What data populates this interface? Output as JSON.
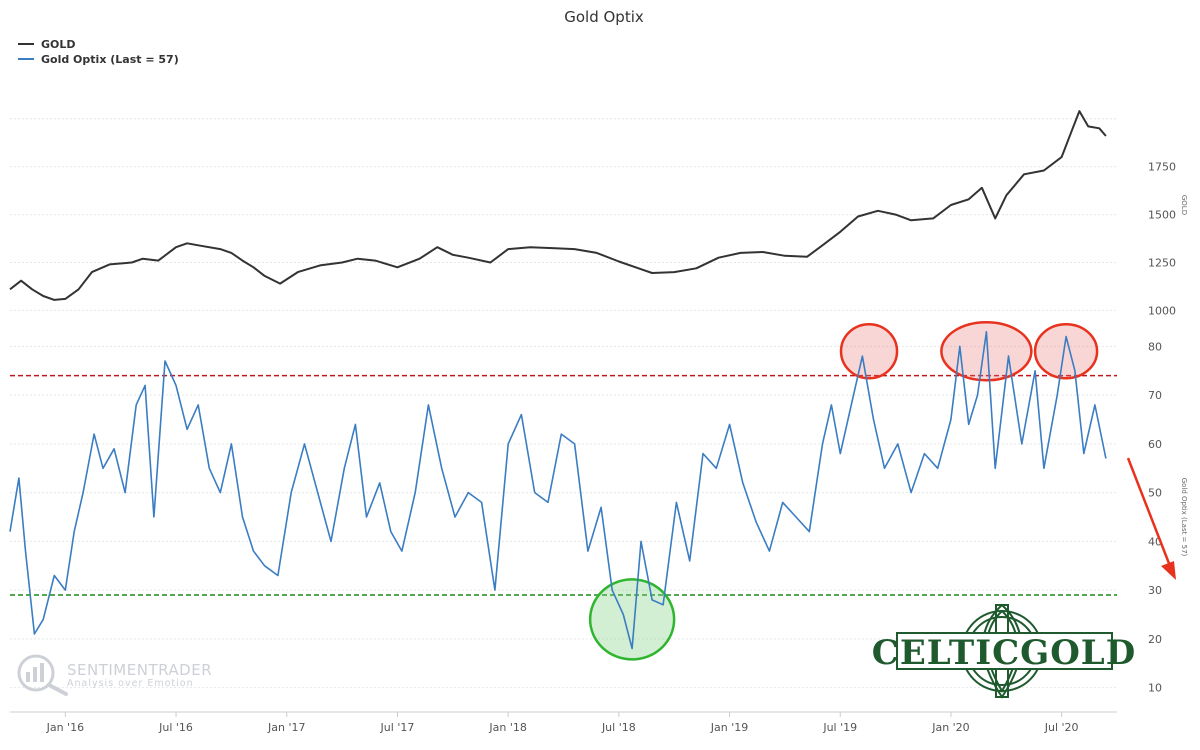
{
  "chart_data": {
    "type": "line",
    "title": "Gold Optix",
    "x_tick_labels": [
      "Jan '16",
      "Jul '16",
      "Jan '17",
      "Jul '17",
      "Jan '18",
      "Jul '18",
      "Jan '19",
      "Jul '19",
      "Jan '20",
      "Jul '20"
    ],
    "x_tick_positions": [
      2016.0,
      2016.5,
      2017.0,
      2017.5,
      2018.0,
      2018.5,
      2019.0,
      2019.5,
      2020.0,
      2020.5
    ],
    "xlim": [
      2015.75,
      2020.75
    ],
    "panels": [
      {
        "name": "gold",
        "axis_label": "GOLD",
        "ylim": [
          950,
          2150
        ],
        "ticks": [
          "1000",
          "1250",
          "1500",
          "1750"
        ],
        "tick_values": [
          1000,
          1250,
          1500,
          1750
        ]
      },
      {
        "name": "optix",
        "axis_label": "Gold Optix (Last = 57)",
        "ylim": [
          5,
          85
        ],
        "ticks": [
          "10",
          "20",
          "30",
          "40",
          "50",
          "60",
          "70",
          "80"
        ],
        "tick_values": [
          10,
          20,
          30,
          40,
          50,
          60,
          70,
          80
        ]
      }
    ],
    "series": [
      {
        "name": "GOLD",
        "panel": "gold",
        "color": "#333333",
        "points": [
          [
            2015.75,
            1110
          ],
          [
            2015.8,
            1155
          ],
          [
            2015.85,
            1110
          ],
          [
            2015.9,
            1075
          ],
          [
            2015.95,
            1055
          ],
          [
            2016.0,
            1060
          ],
          [
            2016.06,
            1110
          ],
          [
            2016.12,
            1200
          ],
          [
            2016.2,
            1240
          ],
          [
            2016.3,
            1250
          ],
          [
            2016.35,
            1270
          ],
          [
            2016.42,
            1260
          ],
          [
            2016.5,
            1330
          ],
          [
            2016.55,
            1350
          ],
          [
            2016.6,
            1340
          ],
          [
            2016.7,
            1320
          ],
          [
            2016.75,
            1300
          ],
          [
            2016.8,
            1260
          ],
          [
            2016.85,
            1225
          ],
          [
            2016.9,
            1180
          ],
          [
            2016.97,
            1140
          ],
          [
            2017.05,
            1200
          ],
          [
            2017.15,
            1235
          ],
          [
            2017.25,
            1250
          ],
          [
            2017.32,
            1270
          ],
          [
            2017.4,
            1260
          ],
          [
            2017.5,
            1225
          ],
          [
            2017.6,
            1270
          ],
          [
            2017.68,
            1330
          ],
          [
            2017.75,
            1290
          ],
          [
            2017.82,
            1275
          ],
          [
            2017.92,
            1250
          ],
          [
            2018.0,
            1320
          ],
          [
            2018.1,
            1330
          ],
          [
            2018.2,
            1325
          ],
          [
            2018.3,
            1320
          ],
          [
            2018.4,
            1300
          ],
          [
            2018.5,
            1255
          ],
          [
            2018.6,
            1215
          ],
          [
            2018.65,
            1195
          ],
          [
            2018.75,
            1200
          ],
          [
            2018.85,
            1220
          ],
          [
            2018.95,
            1275
          ],
          [
            2019.05,
            1300
          ],
          [
            2019.15,
            1305
          ],
          [
            2019.25,
            1285
          ],
          [
            2019.35,
            1280
          ],
          [
            2019.42,
            1340
          ],
          [
            2019.5,
            1410
          ],
          [
            2019.58,
            1490
          ],
          [
            2019.67,
            1520
          ],
          [
            2019.75,
            1500
          ],
          [
            2019.82,
            1470
          ],
          [
            2019.92,
            1480
          ],
          [
            2020.0,
            1550
          ],
          [
            2020.08,
            1580
          ],
          [
            2020.14,
            1640
          ],
          [
            2020.2,
            1480
          ],
          [
            2020.25,
            1600
          ],
          [
            2020.33,
            1710
          ],
          [
            2020.42,
            1730
          ],
          [
            2020.5,
            1800
          ],
          [
            2020.55,
            1950
          ],
          [
            2020.58,
            2040
          ],
          [
            2020.62,
            1960
          ],
          [
            2020.67,
            1950
          ],
          [
            2020.7,
            1910
          ]
        ]
      },
      {
        "name": "Gold Optix (Last = 57)",
        "panel": "optix",
        "color": "#3a7dc2",
        "points": [
          [
            2015.75,
            42
          ],
          [
            2015.79,
            53
          ],
          [
            2015.82,
            38
          ],
          [
            2015.86,
            21
          ],
          [
            2015.9,
            24
          ],
          [
            2015.95,
            33
          ],
          [
            2016.0,
            30
          ],
          [
            2016.04,
            42
          ],
          [
            2016.08,
            50
          ],
          [
            2016.13,
            62
          ],
          [
            2016.17,
            55
          ],
          [
            2016.22,
            59
          ],
          [
            2016.27,
            50
          ],
          [
            2016.32,
            68
          ],
          [
            2016.36,
            72
          ],
          [
            2016.4,
            45
          ],
          [
            2016.45,
            77
          ],
          [
            2016.5,
            72
          ],
          [
            2016.55,
            63
          ],
          [
            2016.6,
            68
          ],
          [
            2016.65,
            55
          ],
          [
            2016.7,
            50
          ],
          [
            2016.75,
            60
          ],
          [
            2016.8,
            45
          ],
          [
            2016.85,
            38
          ],
          [
            2016.9,
            35
          ],
          [
            2016.96,
            33
          ],
          [
            2017.02,
            50
          ],
          [
            2017.08,
            60
          ],
          [
            2017.14,
            50
          ],
          [
            2017.2,
            40
          ],
          [
            2017.26,
            55
          ],
          [
            2017.31,
            64
          ],
          [
            2017.36,
            45
          ],
          [
            2017.42,
            52
          ],
          [
            2017.47,
            42
          ],
          [
            2017.52,
            38
          ],
          [
            2017.58,
            50
          ],
          [
            2017.64,
            68
          ],
          [
            2017.7,
            55
          ],
          [
            2017.76,
            45
          ],
          [
            2017.82,
            50
          ],
          [
            2017.88,
            48
          ],
          [
            2017.94,
            30
          ],
          [
            2018.0,
            60
          ],
          [
            2018.06,
            66
          ],
          [
            2018.12,
            50
          ],
          [
            2018.18,
            48
          ],
          [
            2018.24,
            62
          ],
          [
            2018.3,
            60
          ],
          [
            2018.36,
            38
          ],
          [
            2018.42,
            47
          ],
          [
            2018.47,
            30
          ],
          [
            2018.52,
            25
          ],
          [
            2018.56,
            18
          ],
          [
            2018.6,
            40
          ],
          [
            2018.65,
            28
          ],
          [
            2018.7,
            27
          ],
          [
            2018.76,
            48
          ],
          [
            2018.82,
            36
          ],
          [
            2018.88,
            58
          ],
          [
            2018.94,
            55
          ],
          [
            2019.0,
            64
          ],
          [
            2019.06,
            52
          ],
          [
            2019.12,
            44
          ],
          [
            2019.18,
            38
          ],
          [
            2019.24,
            48
          ],
          [
            2019.3,
            45
          ],
          [
            2019.36,
            42
          ],
          [
            2019.42,
            60
          ],
          [
            2019.46,
            68
          ],
          [
            2019.5,
            58
          ],
          [
            2019.56,
            70
          ],
          [
            2019.6,
            78
          ],
          [
            2019.65,
            65
          ],
          [
            2019.7,
            55
          ],
          [
            2019.76,
            60
          ],
          [
            2019.82,
            50
          ],
          [
            2019.88,
            58
          ],
          [
            2019.94,
            55
          ],
          [
            2020.0,
            65
          ],
          [
            2020.04,
            80
          ],
          [
            2020.08,
            64
          ],
          [
            2020.12,
            70
          ],
          [
            2020.16,
            83
          ],
          [
            2020.2,
            55
          ],
          [
            2020.26,
            78
          ],
          [
            2020.32,
            60
          ],
          [
            2020.38,
            75
          ],
          [
            2020.42,
            55
          ],
          [
            2020.48,
            70
          ],
          [
            2020.52,
            82
          ],
          [
            2020.56,
            75
          ],
          [
            2020.6,
            58
          ],
          [
            2020.65,
            68
          ],
          [
            2020.7,
            57
          ]
        ]
      }
    ],
    "reference_lines": [
      {
        "panel": "optix",
        "value": 74,
        "color": "#c0141c",
        "style": "dashed"
      },
      {
        "panel": "optix",
        "value": 29,
        "color": "#1a8a1a",
        "style": "dashed"
      }
    ],
    "highlights": [
      {
        "panel": "optix",
        "x": 2019.63,
        "y": 79,
        "color": "red"
      },
      {
        "panel": "optix",
        "x": 2020.16,
        "y": 79,
        "color": "red"
      },
      {
        "panel": "optix",
        "x": 2020.52,
        "y": 79,
        "color": "red"
      },
      {
        "panel": "optix",
        "x": 2018.56,
        "y": 24,
        "color": "green"
      }
    ],
    "legend_position": "top-left",
    "grid": true
  },
  "legend": {
    "items": [
      {
        "label": "GOLD",
        "color": "#333333"
      },
      {
        "label": "Gold Optix (Last = 57)",
        "color": "#3a7dc2"
      }
    ]
  },
  "watermark": {
    "name": "SENTIMENTRADER",
    "tagline": "Analysis over Emotion"
  },
  "logo": {
    "text": "CELTICGOLD",
    "color": "#1f5a2e"
  },
  "annotation_arrow_color": "#e8321e"
}
